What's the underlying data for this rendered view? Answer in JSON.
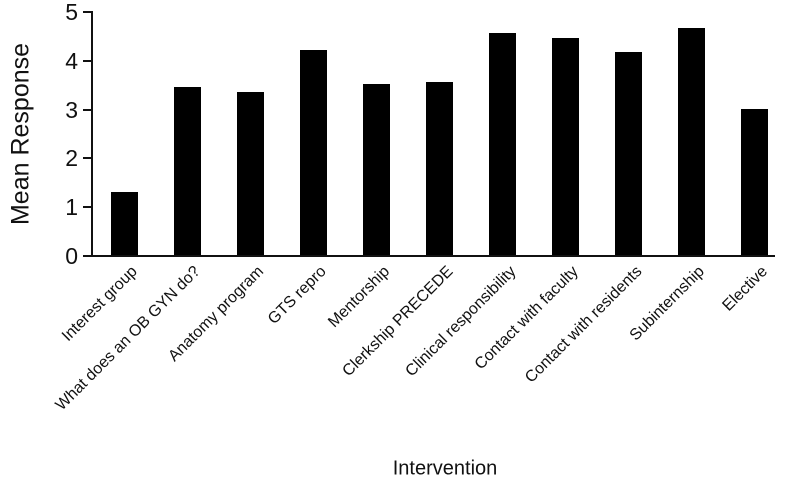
{
  "chart_data": {
    "type": "bar",
    "title": "",
    "xlabel": "Intervention",
    "ylabel": "Mean Response",
    "categories": [
      "Interest group",
      "What does an OB GYN do?",
      "Anatomy program",
      "GTS repro",
      "Mentorship",
      "Clerkship PRECEDE",
      "Clinical responsibility",
      "Contact with faculty",
      "Contact with residents",
      "Subinternship",
      "Elective"
    ],
    "values": [
      1.3,
      3.45,
      3.35,
      4.2,
      3.5,
      3.55,
      4.55,
      4.45,
      4.15,
      4.65,
      3.0
    ],
    "ylim": [
      0,
      5
    ],
    "yticks": [
      0,
      1,
      2,
      3,
      4,
      5
    ],
    "bar_color": "#000000",
    "axis_color": "#111111",
    "text_color": "#111111",
    "grid": false,
    "legend": "none",
    "x_tick_rotation_deg": 45
  }
}
